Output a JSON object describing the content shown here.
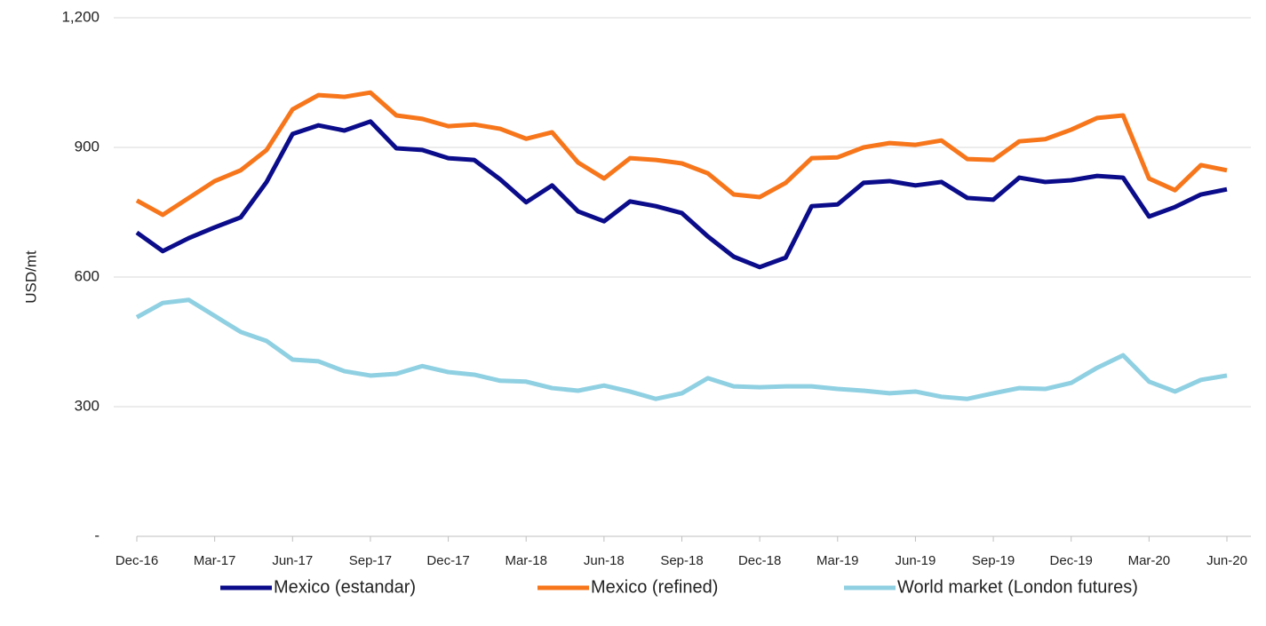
{
  "chart_data": {
    "type": "line",
    "y_label": "USD/mt",
    "categories": [
      "Dec-16",
      null,
      null,
      "Mar-17",
      null,
      null,
      "Jun-17",
      null,
      null,
      "Sep-17",
      null,
      null,
      "Dec-17",
      null,
      null,
      "Mar-18",
      null,
      null,
      "Jun-18",
      null,
      null,
      "Sep-18",
      null,
      null,
      "Dec-18",
      null,
      null,
      "Mar-19",
      null,
      null,
      "Jun-19",
      null,
      null,
      "Sep-19",
      null,
      null,
      "Dec-19",
      null,
      null,
      "Mar-20",
      null,
      null,
      "Jun-20"
    ],
    "series": [
      {
        "name": "Mexico (estandar)",
        "color": "#0b0c8a",
        "values": [
          703,
          660,
          690,
          715,
          738,
          820,
          931,
          951,
          939,
          960,
          898,
          894,
          875,
          871,
          826,
          773,
          812,
          752,
          729,
          775,
          764,
          748,
          694,
          647,
          623,
          645,
          764,
          768,
          818,
          822,
          812,
          820,
          783,
          779,
          830,
          820,
          824,
          834,
          830,
          740,
          762,
          791,
          803
        ]
      },
      {
        "name": "Mexico (refined)",
        "color": "#f7761b",
        "values": [
          777,
          744,
          783,
          822,
          847,
          894,
          988,
          1021,
          1017,
          1027,
          974,
          966,
          949,
          953,
          943,
          920,
          935,
          865,
          828,
          875,
          871,
          863,
          840,
          791,
          785,
          818,
          875,
          877,
          900,
          910,
          906,
          916,
          873,
          871,
          914,
          919,
          941,
          968,
          974,
          828,
          801,
          859,
          847
        ]
      },
      {
        "name": "World market (London futures)",
        "color": "#8fd0e2",
        "values": [
          507,
          540,
          547,
          510,
          473,
          452,
          409,
          405,
          382,
          372,
          376,
          394,
          380,
          374,
          360,
          358,
          343,
          337,
          349,
          335,
          318,
          331,
          366,
          347,
          345,
          347,
          347,
          341,
          337,
          331,
          335,
          323,
          318,
          331,
          343,
          341,
          355,
          390,
          419,
          358,
          335,
          362,
          372
        ]
      }
    ],
    "ylim": [
      0,
      1200
    ],
    "yticks": [
      {
        "value": 0,
        "label": "-"
      },
      300,
      600,
      900,
      {
        "value": 1200,
        "label": "1,200"
      }
    ],
    "grid": true,
    "legend": "bottom"
  }
}
